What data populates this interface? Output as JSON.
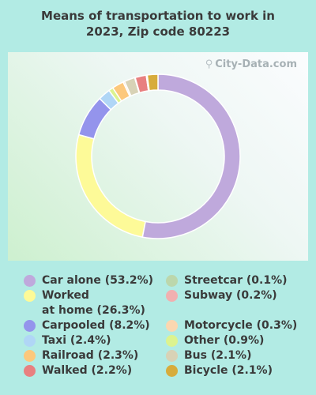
{
  "title_line1": "Means of transportation to work in",
  "title_line2": "2023, Zip code 80223",
  "watermark": {
    "text": "City-Data.com",
    "icon": "magnifier-icon"
  },
  "chart_data": {
    "type": "pie",
    "style": "donut",
    "title": "Means of transportation to work in 2023, Zip code 80223",
    "start_angle_deg": 0,
    "direction": "clockwise",
    "slices": [
      {
        "label": "Car alone",
        "display": "Car alone (53.2%)",
        "value": 53.2,
        "color": "#bfa9dc"
      },
      {
        "label": "Worked at home",
        "display_line1": "Worked",
        "display_line2": "at home (26.3%)",
        "value": 26.3,
        "color": "#fdfa98"
      },
      {
        "label": "Carpooled",
        "display": "Carpooled (8.2%)",
        "value": 8.2,
        "color": "#9494ec"
      },
      {
        "label": "Taxi",
        "display": "Taxi (2.4%)",
        "value": 2.4,
        "color": "#b0d6f6"
      },
      {
        "label": "Other",
        "display": "Other (0.9%)",
        "value": 0.9,
        "color": "#dcf38f"
      },
      {
        "label": "Railroad",
        "display": "Railroad (2.3%)",
        "value": 2.3,
        "color": "#fcc87c"
      },
      {
        "label": "Motorcycle",
        "display": "Motorcycle (0.3%)",
        "value": 0.3,
        "color": "#fbd7b0"
      },
      {
        "label": "Bus",
        "display": "Bus (2.1%)",
        "value": 2.1,
        "color": "#d8d2b6"
      },
      {
        "label": "Streetcar",
        "display": "Streetcar (0.1%)",
        "value": 0.1,
        "color": "#bcd7ac"
      },
      {
        "label": "Walked",
        "display": "Walked (2.2%)",
        "value": 2.2,
        "color": "#e88080"
      },
      {
        "label": "Subway",
        "display": "Subway (0.2%)",
        "value": 0.2,
        "color": "#f1b0b0"
      },
      {
        "label": "Bicycle",
        "display": "Bicycle (2.1%)",
        "value": 2.1,
        "color": "#d7ac3c"
      }
    ]
  }
}
